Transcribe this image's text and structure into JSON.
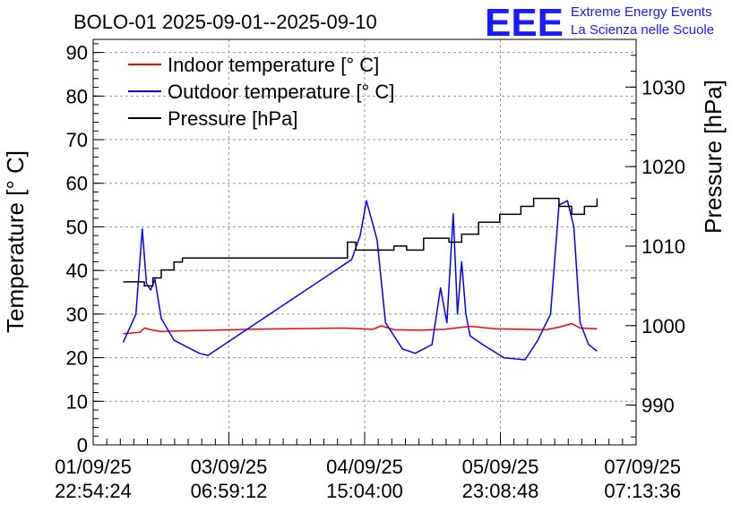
{
  "chart_data": {
    "type": "line",
    "title": "BOLO-01 2025-09-01--2025-09-10",
    "ylabel": "Temperature [° C]",
    "y2label": "Pressure [hPa]",
    "ylim": [
      0,
      93
    ],
    "y2lim": [
      985,
      1036
    ],
    "yticks": [
      "0",
      "10",
      "20",
      "30",
      "40",
      "50",
      "60",
      "70",
      "80",
      "90"
    ],
    "y2ticks": [
      "990",
      "1000",
      "1010",
      "1020",
      "1030"
    ],
    "xticks": [
      {
        "date": "01/09/25",
        "time": "22:54:24"
      },
      {
        "date": "03/09/25",
        "time": "06:59:12"
      },
      {
        "date": "04/09/25",
        "time": "15:04:00"
      },
      {
        "date": "05/09/25",
        "time": "23:08:48"
      },
      {
        "date": "07/09/25",
        "time": "07:13:36"
      }
    ],
    "xlim": [
      "2025-09-01 22:54:24",
      "2025-09-07 07:13:36"
    ],
    "grid": true,
    "legend_position": "top-left",
    "colors": {
      "indoor": "#ff0000",
      "outdoor": "#0000ff",
      "pressure": "#000000"
    },
    "series": [
      {
        "name": "Indoor temperature [° C]",
        "axis": "left",
        "x": [
          "2025-09-02 06:00",
          "2025-09-02 10:00",
          "2025-09-02 11:00",
          "2025-09-02 13:00",
          "2025-09-02 15:00",
          "2025-09-02 18:00",
          "2025-09-03 12:00",
          "2025-09-04 10:00",
          "2025-09-04 17:00",
          "2025-09-04 19:00",
          "2025-09-04 22:00",
          "2025-09-05 04:00",
          "2025-09-05 10:00",
          "2025-09-05 16:00",
          "2025-09-05 22:00",
          "2025-09-06 04:00",
          "2025-09-06 10:00",
          "2025-09-06 13:00",
          "2025-09-06 16:00",
          "2025-09-06 18:00",
          "2025-09-06 22:00"
        ],
        "values": [
          25.5,
          25.8,
          26.8,
          26.3,
          26.0,
          26.1,
          26.5,
          26.8,
          26.5,
          27.3,
          26.4,
          26.3,
          26.5,
          27.2,
          26.6,
          26.5,
          26.4,
          27.0,
          27.8,
          26.8,
          26.6
        ]
      },
      {
        "name": "Outdoor temperature [° C]",
        "axis": "left",
        "x": [
          "2025-09-02 06:00",
          "2025-09-02 09:00",
          "2025-09-02 10:30",
          "2025-09-02 11:30",
          "2025-09-02 12:30",
          "2025-09-02 13:30",
          "2025-09-02 15:00",
          "2025-09-02 18:00",
          "2025-09-03 00:00",
          "2025-09-03 02:00",
          "2025-09-04 12:00",
          "2025-09-04 14:00",
          "2025-09-04 15:30",
          "2025-09-04 18:00",
          "2025-09-04 20:00",
          "2025-09-05 00:00",
          "2025-09-05 03:00",
          "2025-09-05 07:00",
          "2025-09-05 09:00",
          "2025-09-05 10:30",
          "2025-09-05 12:00",
          "2025-09-05 13:00",
          "2025-09-05 14:00",
          "2025-09-05 15:00",
          "2025-09-05 16:00",
          "2025-09-05 19:00",
          "2025-09-06 00:00",
          "2025-09-06 05:00",
          "2025-09-06 08:00",
          "2025-09-06 11:00",
          "2025-09-06 13:00",
          "2025-09-06 15:00",
          "2025-09-06 16:30",
          "2025-09-06 18:00",
          "2025-09-06 20:00",
          "2025-09-06 22:00"
        ],
        "values": [
          23.5,
          30,
          49.5,
          37,
          35.5,
          38,
          29,
          24,
          21,
          20.5,
          42.5,
          48,
          56,
          47,
          28,
          22,
          21,
          23,
          36,
          28,
          53,
          30,
          42,
          30,
          25,
          23,
          20,
          19.5,
          24,
          30,
          55,
          56,
          50,
          28,
          23,
          21.5
        ]
      },
      {
        "name": "Pressure [hPa]",
        "axis": "right",
        "x": [
          "2025-09-02 06:00",
          "2025-09-02 11:00",
          "2025-09-02 13:00",
          "2025-09-02 15:00",
          "2025-09-02 18:00",
          "2025-09-02 20:00",
          "2025-09-04 11:00",
          "2025-09-04 13:00",
          "2025-09-04 18:00",
          "2025-09-04 22:00",
          "2025-09-05 01:00",
          "2025-09-05 05:00",
          "2025-09-05 11:00",
          "2025-09-05 14:00",
          "2025-09-05 18:00",
          "2025-09-05 23:00",
          "2025-09-06 04:00",
          "2025-09-06 07:00",
          "2025-09-06 10:00",
          "2025-09-06 13:00",
          "2025-09-06 16:00",
          "2025-09-06 19:00",
          "2025-09-06 22:00"
        ],
        "values": [
          1005.5,
          1005.0,
          1006.0,
          1007.0,
          1008.0,
          1008.5,
          1010.5,
          1009.5,
          1009.5,
          1010.0,
          1009.5,
          1011.0,
          1010.5,
          1011.5,
          1013.0,
          1014.0,
          1015.0,
          1016.0,
          1016.0,
          1015.0,
          1014.0,
          1015.0,
          1016.0
        ]
      }
    ]
  },
  "logo": {
    "letters": "EEE",
    "line1": "Extreme Energy Events",
    "line2": "La Scienza nelle Scuole"
  }
}
